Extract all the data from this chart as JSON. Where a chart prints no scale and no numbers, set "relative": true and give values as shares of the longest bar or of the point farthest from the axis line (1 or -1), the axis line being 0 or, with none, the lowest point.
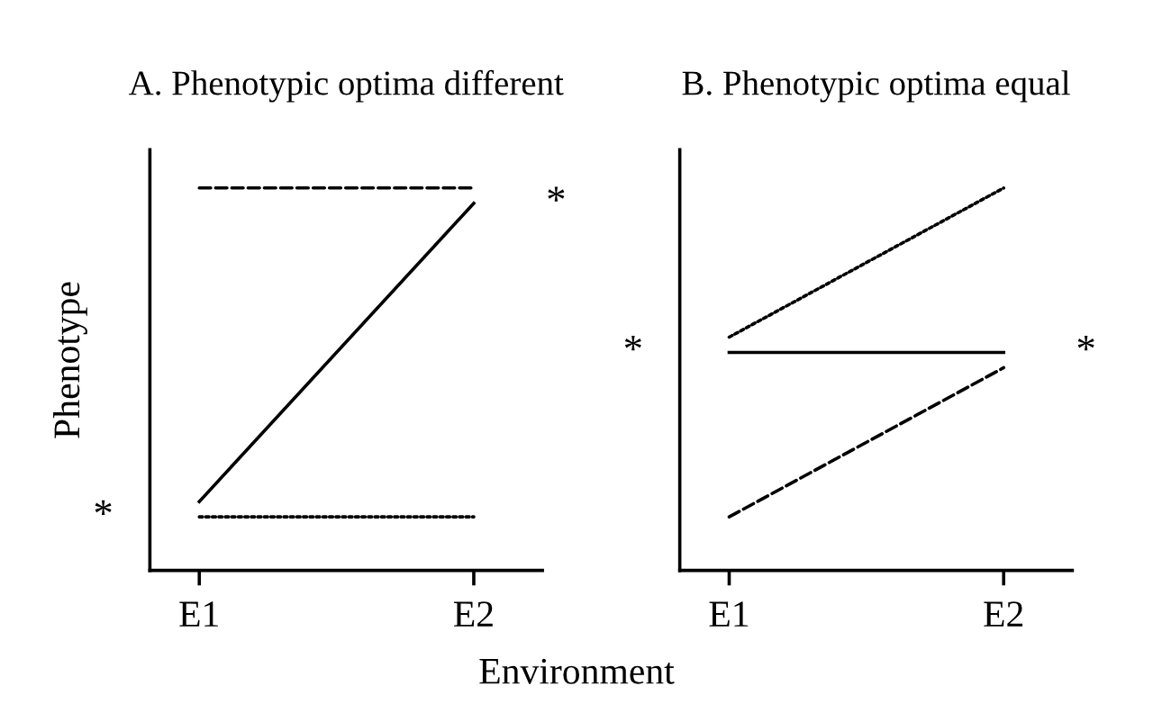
{
  "chart_data": [
    {
      "type": "line",
      "title": "A. Phenotypic optima different",
      "ylabel": "Phenotype",
      "xlabel": "Environment",
      "relative": true,
      "categories": [
        "E1",
        "E2"
      ],
      "series": [
        {
          "color": "#000000",
          "line_style": "dashed",
          "values": [
            1,
            1
          ]
        },
        {
          "color": "#000000",
          "line_style": "solid",
          "values": [
            0.18,
            0.96
          ]
        },
        {
          "color": "#000000",
          "line_style": "dotted",
          "values": [
            0.14,
            0.14
          ]
        }
      ],
      "annotations": [
        {
          "text": "*",
          "x": "E1",
          "y": 0.14
        },
        {
          "text": "*",
          "x": "E2",
          "y": 0.96
        }
      ]
    },
    {
      "type": "line",
      "title": "B. Phenotypic optima equal",
      "relative": true,
      "categories": [
        "E1",
        "E2"
      ],
      "series": [
        {
          "color": "#000000",
          "line_style": "dotted",
          "values": [
            0.61,
            1
          ]
        },
        {
          "color": "#000000",
          "line_style": "solid",
          "values": [
            0.57,
            0.57
          ]
        },
        {
          "color": "#000000",
          "line_style": "dashed",
          "values": [
            0.14,
            0.53
          ]
        }
      ],
      "annotations": [
        {
          "text": "*",
          "x": "E1",
          "y": 0.57
        },
        {
          "text": "*",
          "x": "E2",
          "y": 0.57
        }
      ]
    }
  ]
}
